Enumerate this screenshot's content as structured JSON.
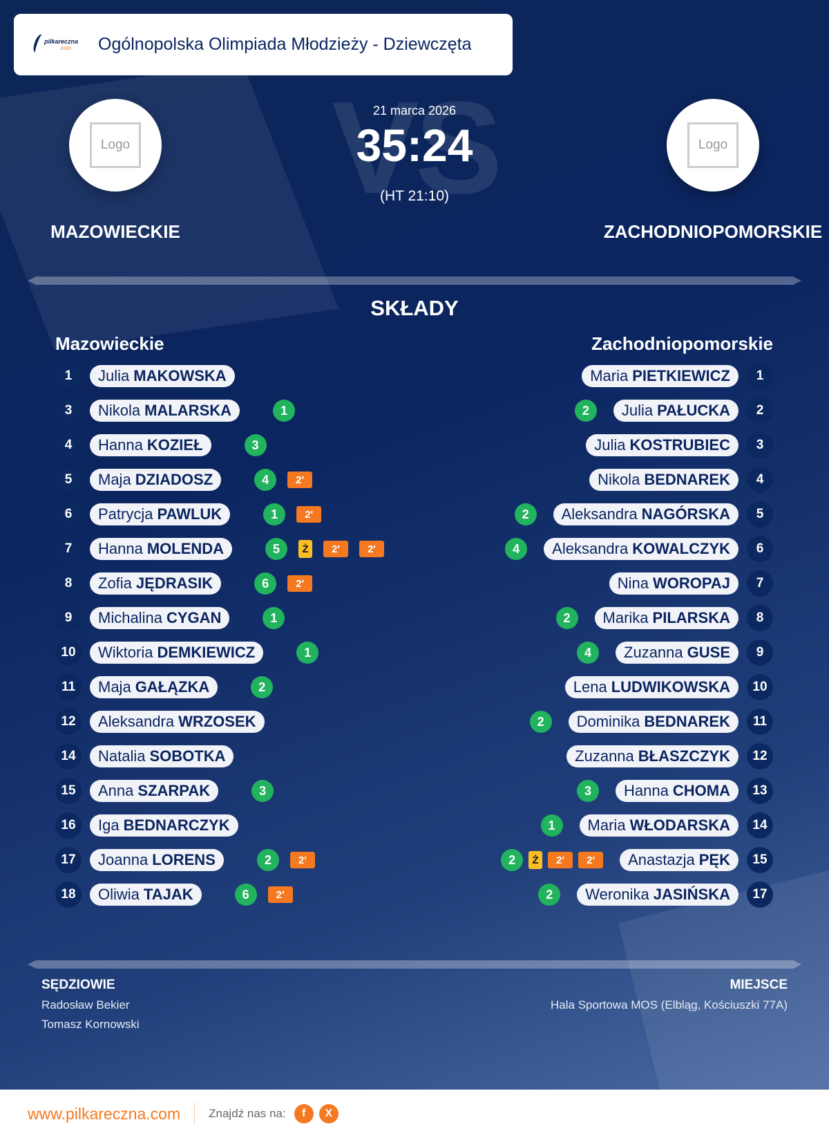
{
  "header": {
    "title": "Ogólnopolska Olimpiada Młodzieży - Dziewczęta",
    "logo_text": "pilkareczna",
    "logo_sub": ".com"
  },
  "match": {
    "date": "21 marca 2026",
    "score": "35:24",
    "halftime": "(HT 21:10)",
    "vs": "VS"
  },
  "home": {
    "name": "MAZOWIECKIE",
    "lineup_title": "Mazowieckie",
    "logo": "Logo"
  },
  "away": {
    "name": "ZACHODNIOPOMORSKIE",
    "lineup_title": "Zachodniopomorskie",
    "logo": "Logo"
  },
  "section_title": "SKŁADY",
  "home_players": [
    {
      "number": "1",
      "first": "Julia",
      "last": "MAKOWSKA",
      "goals": "",
      "cards": []
    },
    {
      "number": "3",
      "first": "Nikola",
      "last": "MALARSKA",
      "goals": "1",
      "cards": []
    },
    {
      "number": "4",
      "first": "Hanna",
      "last": "KOZIEŁ",
      "goals": "3",
      "cards": []
    },
    {
      "number": "5",
      "first": "Maja",
      "last": "DZIADOSZ",
      "goals": "4",
      "cards": [
        "2'"
      ]
    },
    {
      "number": "6",
      "first": "Patrycja",
      "last": "PAWLUK",
      "goals": "1",
      "cards": [
        "2'"
      ]
    },
    {
      "number": "7",
      "first": "Hanna",
      "last": "MOLENDA",
      "goals": "5",
      "cards": [
        "Ż",
        "2'",
        "2'"
      ]
    },
    {
      "number": "8",
      "first": "Zofia",
      "last": "JĘDRASIK",
      "goals": "6",
      "cards": [
        "2'"
      ]
    },
    {
      "number": "9",
      "first": "Michalina",
      "last": "CYGAN",
      "goals": "1",
      "cards": []
    },
    {
      "number": "10",
      "first": "Wiktoria",
      "last": "DEMKIEWICZ",
      "goals": "1",
      "cards": []
    },
    {
      "number": "11",
      "first": "Maja",
      "last": "GAŁĄZKA",
      "goals": "2",
      "cards": []
    },
    {
      "number": "12",
      "first": "Aleksandra",
      "last": "WRZOSEK",
      "goals": "",
      "cards": []
    },
    {
      "number": "14",
      "first": "Natalia",
      "last": "SOBOTKA",
      "goals": "",
      "cards": []
    },
    {
      "number": "15",
      "first": "Anna",
      "last": "SZARPAK",
      "goals": "3",
      "cards": []
    },
    {
      "number": "16",
      "first": "Iga",
      "last": "BEDNARCZYK",
      "goals": "",
      "cards": []
    },
    {
      "number": "17",
      "first": "Joanna",
      "last": "LORENS",
      "goals": "2",
      "cards": [
        "2'"
      ]
    },
    {
      "number": "18",
      "first": "Oliwia",
      "last": "TAJAK",
      "goals": "6",
      "cards": [
        "2'"
      ]
    }
  ],
  "away_players": [
    {
      "number": "1",
      "first": "Maria",
      "last": "PIETKIEWICZ",
      "goals": "",
      "cards": []
    },
    {
      "number": "2",
      "first": "Julia",
      "last": "PAŁUCKA",
      "goals": "2",
      "cards": []
    },
    {
      "number": "3",
      "first": "Julia",
      "last": "KOSTRUBIEC",
      "goals": "",
      "cards": []
    },
    {
      "number": "4",
      "first": "Nikola",
      "last": "BEDNAREK",
      "goals": "",
      "cards": []
    },
    {
      "number": "5",
      "first": "Aleksandra",
      "last": "NAGÓRSKA",
      "goals": "2",
      "cards": []
    },
    {
      "number": "6",
      "first": "Aleksandra",
      "last": "KOWALCZYK",
      "goals": "4",
      "cards": []
    },
    {
      "number": "7",
      "first": "Nina",
      "last": "WOROPAJ",
      "goals": "",
      "cards": []
    },
    {
      "number": "8",
      "first": "Marika",
      "last": "PILARSKA",
      "goals": "2",
      "cards": []
    },
    {
      "number": "9",
      "first": "Zuzanna",
      "last": "GUSE",
      "goals": "4",
      "cards": []
    },
    {
      "number": "10",
      "first": "Lena",
      "last": "LUDWIKOWSKA",
      "goals": "",
      "cards": []
    },
    {
      "number": "11",
      "first": "Dominika",
      "last": "BEDNAREK",
      "goals": "2",
      "cards": []
    },
    {
      "number": "12",
      "first": "Zuzanna",
      "last": "BŁASZCZYK",
      "goals": "",
      "cards": []
    },
    {
      "number": "13",
      "first": "Hanna",
      "last": "CHOMA",
      "goals": "3",
      "cards": []
    },
    {
      "number": "14",
      "first": "Maria",
      "last": "WŁODARSKA",
      "goals": "1",
      "cards": []
    },
    {
      "number": "15",
      "first": "Anastazja",
      "last": "PĘK",
      "goals": "2",
      "cards": [
        "Ż",
        "2'",
        "2'"
      ]
    },
    {
      "number": "17",
      "first": "Weronika",
      "last": "JASIŃSKA",
      "goals": "2",
      "cards": []
    }
  ],
  "officials": {
    "label": "SĘDZIOWIE",
    "names": [
      "Radosław Bekier",
      "Tomasz Kornowski"
    ]
  },
  "venue": {
    "label": "MIEJSCE",
    "name": "Hala Sportowa MOS (Elbląg, Kościuszki 77A)"
  },
  "footer": {
    "site": "www.pilkareczna.com",
    "find_us": "Znajdź nas na:",
    "facebook": "f",
    "x": "X"
  },
  "colors": {
    "navy": "#0b2560",
    "goal": "#22b35e",
    "two_min": "#f47920",
    "yellow": "#fbbf24"
  }
}
